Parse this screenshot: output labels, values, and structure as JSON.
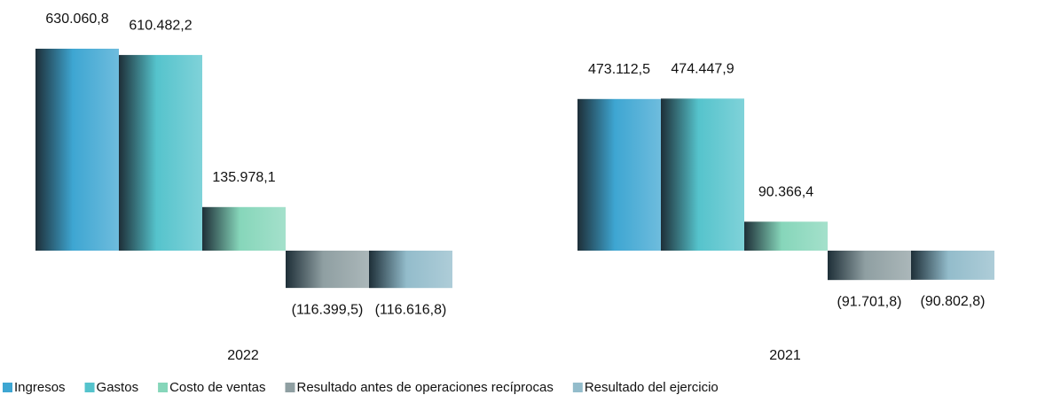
{
  "chart_data": {
    "type": "bar",
    "categories": [
      "2022",
      "2021"
    ],
    "series": [
      {
        "name": "Ingresos",
        "color": "#3ea6d2",
        "values": [
          630060.8,
          473112.5
        ],
        "value_labels": [
          "630.060,8",
          "473.112,5"
        ]
      },
      {
        "name": "Gastos",
        "color": "#55c3cc",
        "values": [
          610482.2,
          474447.9
        ],
        "value_labels": [
          "610.482,2",
          "474.447,9"
        ]
      },
      {
        "name": "Costo de ventas",
        "color": "#86d6ba",
        "values": [
          135978.1,
          90366.4
        ],
        "value_labels": [
          "135.978,1",
          "90.366,4"
        ]
      },
      {
        "name": "Resultado antes de operaciones recíprocas",
        "color": "#8f9fa2",
        "values": [
          -116399.5,
          -91701.8
        ],
        "value_labels": [
          "(116.399,5)",
          "(91.701,8)"
        ]
      },
      {
        "name": "Resultado del ejercicio",
        "color": "#93bccb",
        "values": [
          -116616.8,
          -90802.8
        ],
        "value_labels": [
          "(116.616,8)",
          "(90.802,8)"
        ]
      }
    ]
  }
}
